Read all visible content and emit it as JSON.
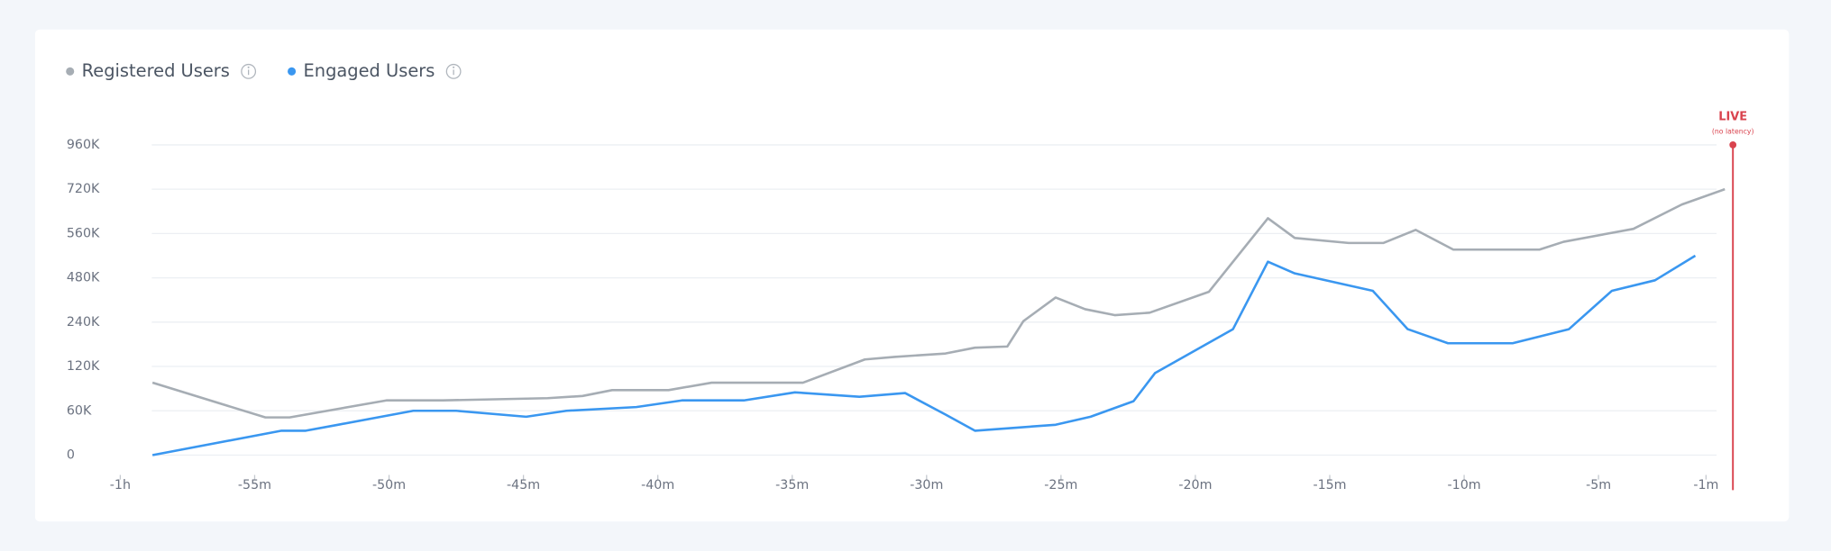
{
  "chart_data": {
    "type": "line",
    "series": [
      {
        "name": "Registered Users",
        "color": "#a6adb4",
        "x": [
          -58.8,
          -54.6,
          -53.7,
          -50.1,
          -48.0,
          -44.1,
          -42.8,
          -41.7,
          -39.6,
          -38.0,
          -34.6,
          -32.3,
          -31.2,
          -29.3,
          -28.2,
          -27.0,
          -26.4,
          -25.2,
          -24.1,
          -23.0,
          -21.7,
          -19.5,
          -17.3,
          -16.3,
          -14.3,
          -13.0,
          -11.8,
          -10.4,
          -7.2,
          -6.3,
          -3.7,
          -1.9,
          -0.3
        ],
        "values": [
          98000,
          51000,
          51000,
          74000,
          74000,
          77000,
          80000,
          88000,
          88000,
          98000,
          98000,
          139000,
          146000,
          155000,
          171000,
          174000,
          246000,
          373000,
          310000,
          278000,
          291000,
          404000,
          615000,
          552000,
          543000,
          543000,
          573000,
          531000,
          531000,
          545000,
          577000,
          665000,
          720000
        ]
      },
      {
        "name": "Engaged Users",
        "color": "#3a97f0",
        "x": [
          -58.8,
          -54.0,
          -53.1,
          -51.9,
          -49.1,
          -47.5,
          -44.9,
          -43.4,
          -40.8,
          -39.1,
          -36.8,
          -34.9,
          -32.5,
          -30.8,
          -29.3,
          -28.2,
          -25.2,
          -23.9,
          -22.3,
          -21.5,
          -18.6,
          -17.3,
          -16.3,
          -13.4,
          -12.1,
          -10.6,
          -8.2,
          -6.1,
          -4.5,
          -2.9,
          -1.4
        ],
        "values": [
          0,
          33000,
          33000,
          41000,
          60000,
          60000,
          52000,
          60000,
          65000,
          74000,
          74000,
          85000,
          79000,
          84000,
          55000,
          33000,
          41000,
          52000,
          73000,
          111000,
          221000,
          509000,
          488000,
          410000,
          221000,
          183000,
          183000,
          221000,
          410000,
          467000,
          520000
        ]
      }
    ],
    "xlim": [
      -60,
      0
    ],
    "xticks": [
      {
        "value": -60,
        "label": "-1h"
      },
      {
        "value": -55,
        "label": "-55m"
      },
      {
        "value": -50,
        "label": "-50m"
      },
      {
        "value": -45,
        "label": "-45m"
      },
      {
        "value": -40,
        "label": "-40m"
      },
      {
        "value": -35,
        "label": "-35m"
      },
      {
        "value": -30,
        "label": "-30m"
      },
      {
        "value": -25,
        "label": "-25m"
      },
      {
        "value": -20,
        "label": "-20m"
      },
      {
        "value": -15,
        "label": "-15m"
      },
      {
        "value": -10,
        "label": "-10m"
      },
      {
        "value": -5,
        "label": "-5m"
      },
      {
        "value": -1,
        "label": "-1m"
      }
    ],
    "ylim": [
      0,
      960000
    ],
    "yticks": [
      0,
      {
        "value": 60000,
        "label": "60K"
      },
      {
        "value": 120000,
        "label": "120K"
      },
      {
        "value": 240000,
        "label": "240K"
      },
      {
        "value": 480000,
        "label": "480K"
      },
      {
        "value": 560000,
        "label": "560K"
      },
      {
        "value": 720000,
        "label": "720K"
      },
      {
        "value": 960000,
        "label": "960K"
      }
    ],
    "grid": true,
    "live_marker": {
      "label": "LIVE",
      "sublabel": "(no latency)",
      "x": 0,
      "color": "#d9434e"
    }
  }
}
